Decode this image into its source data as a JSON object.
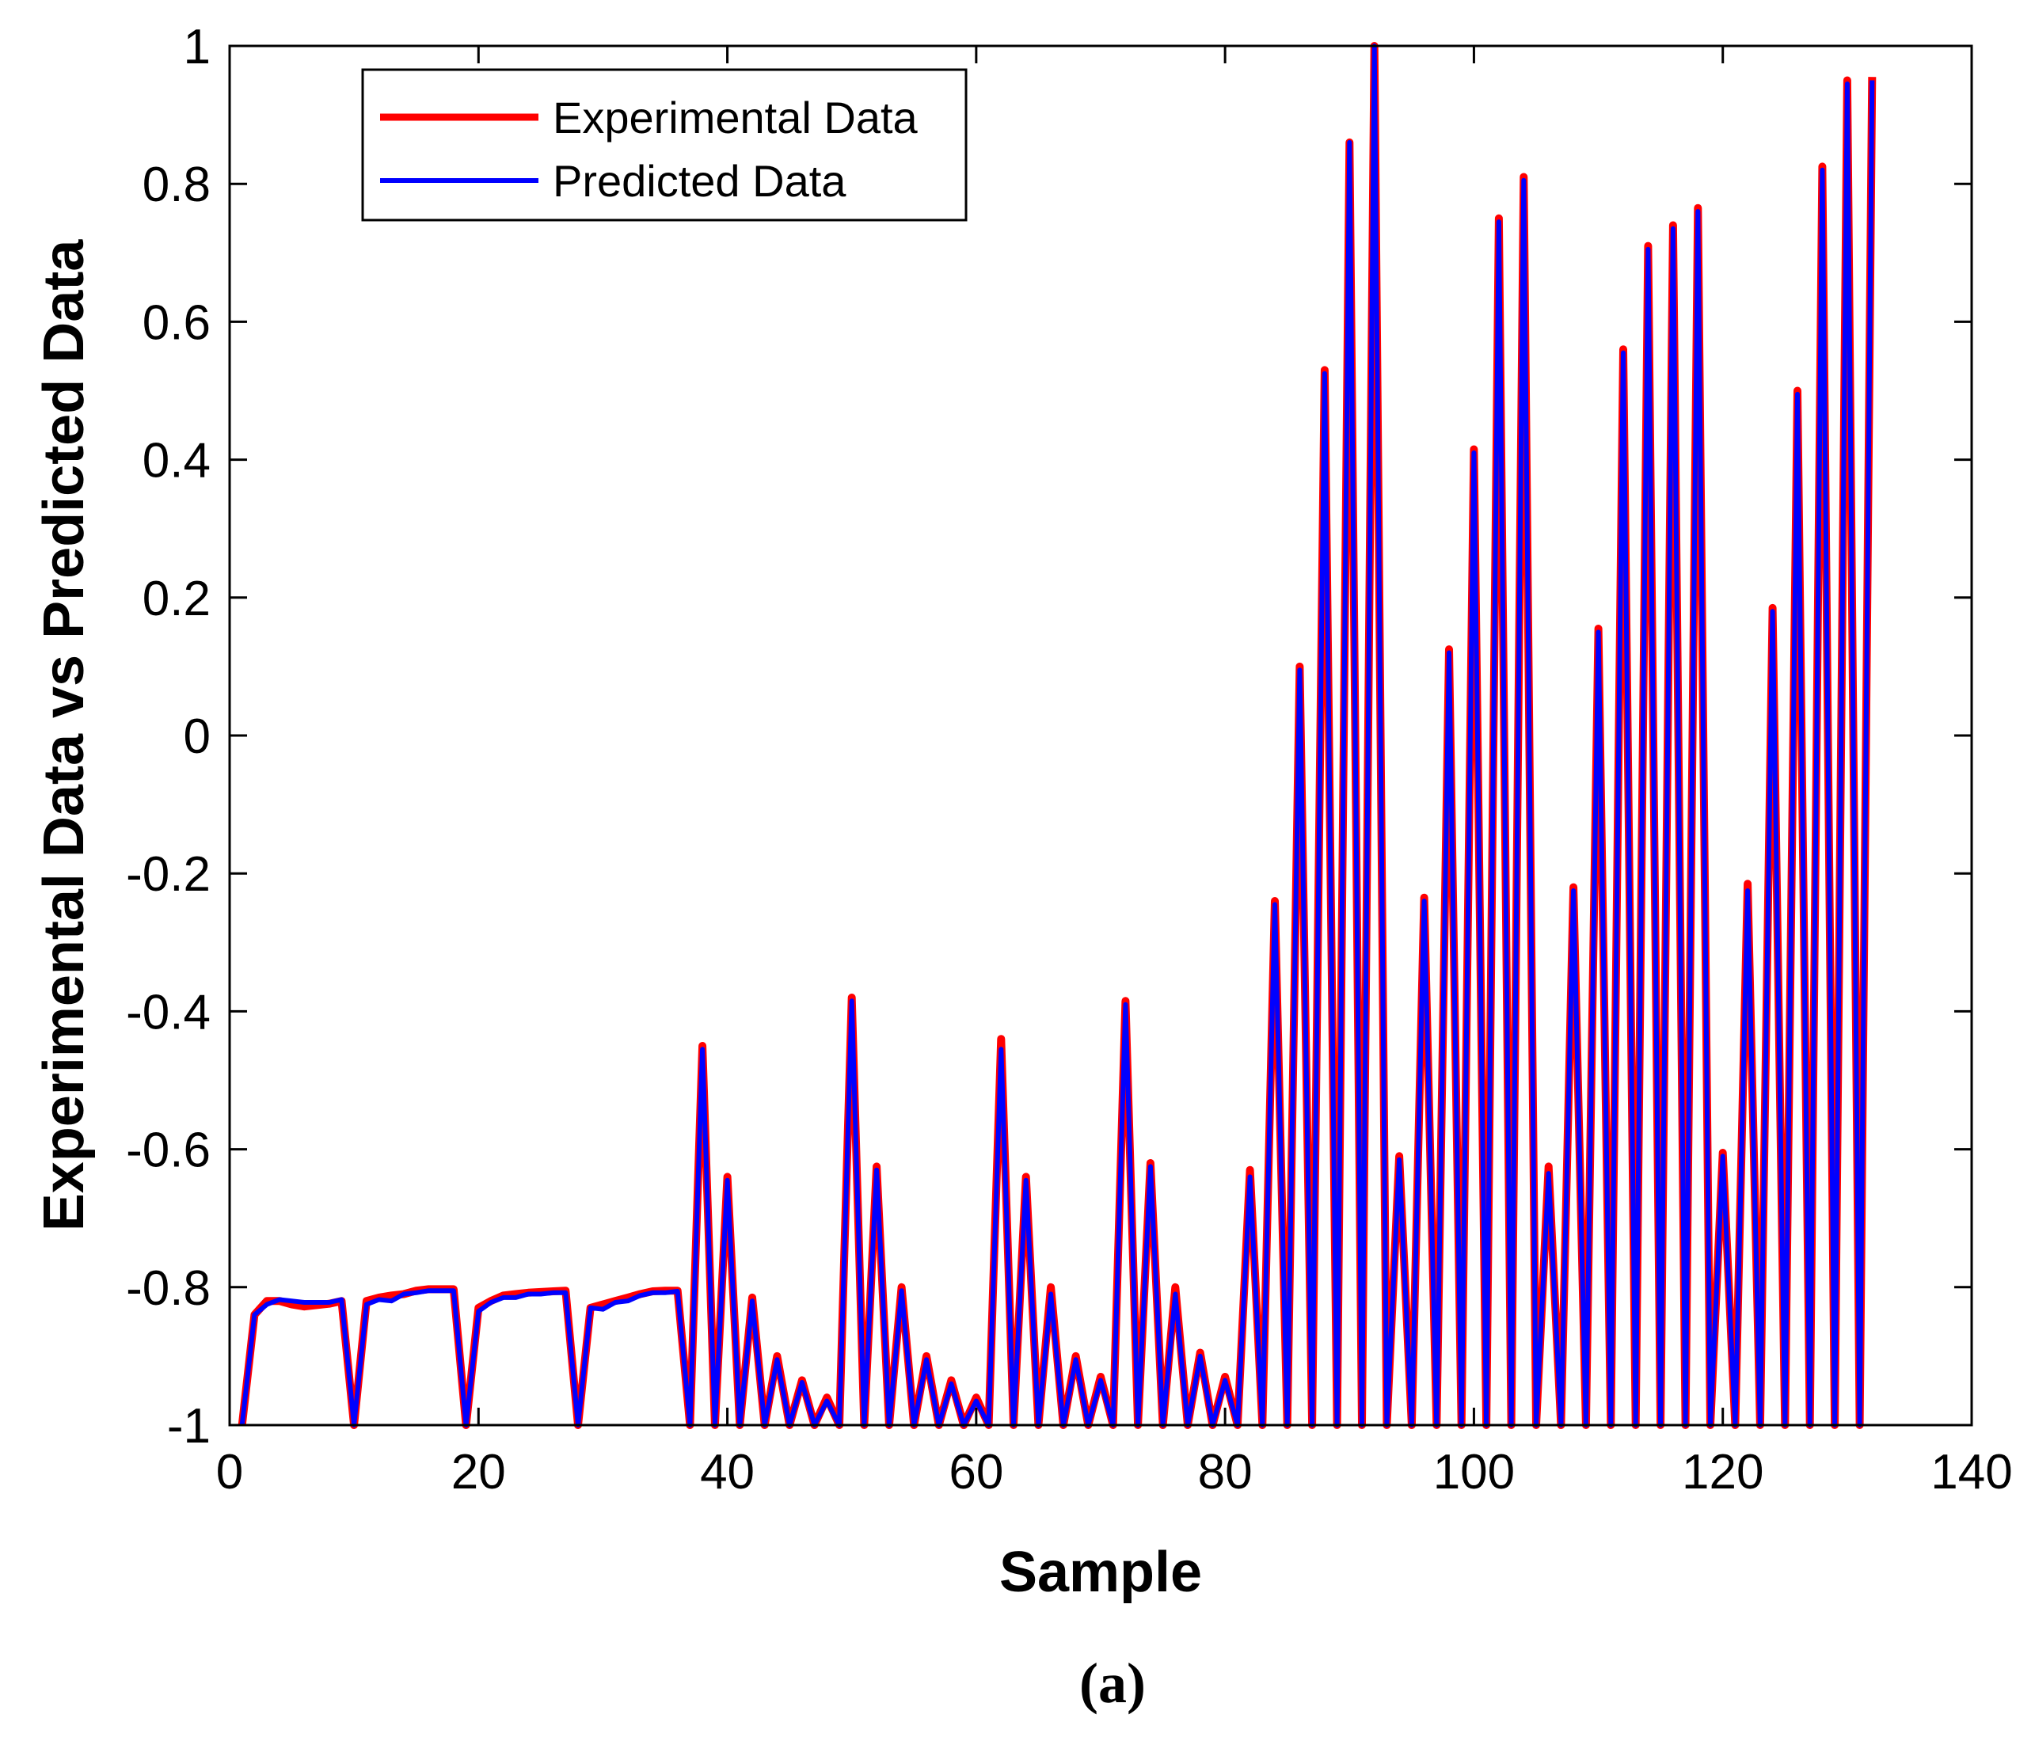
{
  "chart_data": {
    "type": "line",
    "title": "",
    "xlabel": "Sample",
    "ylabel": "Experimental Data vs Predicted Data",
    "caption": "(a)",
    "xlim": [
      0,
      140
    ],
    "ylim": [
      -1,
      1
    ],
    "xticks": [
      0,
      20,
      40,
      60,
      80,
      100,
      120,
      140
    ],
    "yticks": [
      -1,
      -0.8,
      -0.6,
      -0.4,
      -0.2,
      0,
      0.2,
      0.4,
      0.6,
      0.8,
      1
    ],
    "xtick_labels": [
      "0",
      "20",
      "40",
      "60",
      "80",
      "100",
      "120",
      "140"
    ],
    "ytick_labels": [
      "-1",
      "-0.8",
      "-0.6",
      "-0.4",
      "-0.2",
      "0",
      "0.2",
      "0.4",
      "0.6",
      "0.8",
      "1"
    ],
    "grid": false,
    "legend_position": "top-left",
    "x": [
      1,
      2,
      3,
      4,
      5,
      6,
      7,
      8,
      9,
      10,
      11,
      12,
      13,
      14,
      15,
      16,
      17,
      18,
      19,
      20,
      21,
      22,
      23,
      24,
      25,
      26,
      27,
      28,
      29,
      30,
      31,
      32,
      33,
      34,
      35,
      36,
      37,
      38,
      39,
      40,
      41,
      42,
      43,
      44,
      45,
      46,
      47,
      48,
      49,
      50,
      51,
      52,
      53,
      54,
      55,
      56,
      57,
      58,
      59,
      60,
      61,
      62,
      63,
      64,
      65,
      66,
      67,
      68,
      69,
      70,
      71,
      72,
      73,
      74,
      75,
      76,
      77,
      78,
      79,
      80,
      81,
      82,
      83,
      84,
      85,
      86,
      87,
      88,
      89,
      90,
      91,
      92,
      93,
      94,
      95,
      96,
      97,
      98,
      99,
      100,
      101,
      102,
      103,
      104,
      105,
      106,
      107,
      108,
      109,
      110,
      111,
      112,
      113,
      114,
      115,
      116,
      117,
      118,
      119,
      120,
      121,
      122,
      123,
      124,
      125,
      126,
      127,
      128,
      129,
      130,
      131,
      132
    ],
    "series": [
      {
        "name": "Experimental Data",
        "color": "#ff0000",
        "values": [
          -1,
          -0.84,
          -0.82,
          -0.82,
          -0.825,
          -0.828,
          -0.826,
          -0.824,
          -0.82,
          -1,
          -0.82,
          -0.815,
          -0.812,
          -0.81,
          -0.805,
          -0.803,
          -0.803,
          -0.803,
          -1,
          -0.83,
          -0.82,
          -0.812,
          -0.81,
          -0.808,
          -0.807,
          -0.806,
          -0.805,
          -1,
          -0.83,
          -0.825,
          -0.82,
          -0.815,
          -0.81,
          -0.806,
          -0.805,
          -0.805,
          -1,
          -0.45,
          -1,
          -0.64,
          -1,
          -0.815,
          -1,
          -0.9,
          -1,
          -0.935,
          -1,
          -0.96,
          -1,
          -0.38,
          -1,
          -0.625,
          -1,
          -0.8,
          -1,
          -0.9,
          -1,
          -0.935,
          -1,
          -0.96,
          -1,
          -0.44,
          -1,
          -0.64,
          -1,
          -0.8,
          -1,
          -0.9,
          -1,
          -0.93,
          -1,
          -0.385,
          -1,
          -0.62,
          -1,
          -0.8,
          -1,
          -0.895,
          -1,
          -0.93,
          -1,
          -0.63,
          -1,
          -0.24,
          -1,
          0.1,
          -1,
          0.53,
          -1,
          0.86,
          -1,
          1.0,
          -1,
          -0.61,
          -1,
          -0.235,
          -1,
          0.125,
          -1,
          0.415,
          -1,
          0.75,
          -1,
          0.81,
          -1,
          -0.625,
          -1,
          -0.22,
          -1,
          0.155,
          -1,
          0.56,
          -1,
          0.71,
          -1,
          0.74,
          -1,
          0.765,
          -1,
          -0.605,
          -1,
          -0.215,
          -1,
          0.185,
          -1,
          0.5,
          -1,
          0.825,
          -1,
          0.95,
          -1,
          0.955
        ]
      },
      {
        "name": "Predicted Data",
        "color": "#0000ff",
        "values": [
          -1,
          -0.84,
          -0.825,
          -0.818,
          -0.82,
          -0.822,
          -0.822,
          -0.822,
          -0.818,
          -1,
          -0.825,
          -0.818,
          -0.82,
          -0.81,
          -0.808,
          -0.805,
          -0.805,
          -0.805,
          -1,
          -0.835,
          -0.822,
          -0.815,
          -0.815,
          -0.81,
          -0.81,
          -0.808,
          -0.808,
          -1,
          -0.83,
          -0.832,
          -0.822,
          -0.82,
          -0.812,
          -0.808,
          -0.808,
          -0.806,
          -1,
          -0.455,
          -1,
          -0.645,
          -1,
          -0.82,
          -1,
          -0.905,
          -1,
          -0.938,
          -1,
          -0.965,
          -1,
          -0.385,
          -1,
          -0.63,
          -1,
          -0.805,
          -1,
          -0.905,
          -1,
          -0.94,
          -1,
          -0.965,
          -1,
          -0.455,
          -1,
          -0.645,
          -1,
          -0.81,
          -1,
          -0.905,
          -1,
          -0.935,
          -1,
          -0.39,
          -1,
          -0.625,
          -1,
          -0.81,
          -1,
          -0.9,
          -1,
          -0.935,
          -1,
          -0.64,
          -1,
          -0.245,
          -1,
          0.095,
          -1,
          0.525,
          -1,
          0.86,
          -1,
          1.0,
          -1,
          -0.615,
          -1,
          -0.24,
          -1,
          0.12,
          -1,
          0.41,
          -1,
          0.745,
          -1,
          0.805,
          -1,
          -0.635,
          -1,
          -0.225,
          -1,
          0.15,
          -1,
          0.555,
          -1,
          0.705,
          -1,
          0.735,
          -1,
          0.76,
          -1,
          -0.61,
          -1,
          -0.225,
          -1,
          0.18,
          -1,
          0.495,
          -1,
          0.82,
          -1,
          0.945,
          -1,
          0.95
        ]
      }
    ]
  }
}
